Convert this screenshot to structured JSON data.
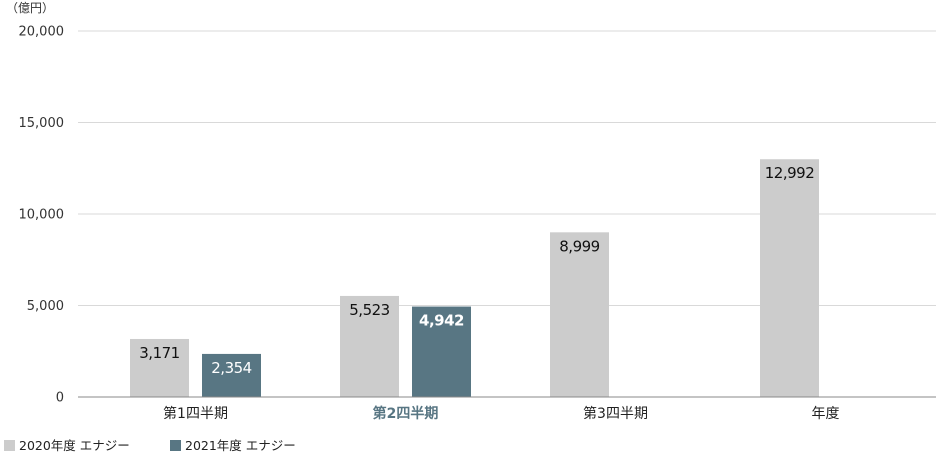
{
  "chart_data": {
    "type": "bar",
    "unit_label": "（億円）",
    "categories": [
      "第1四半期",
      "第2四半期",
      "第3四半期",
      "年度"
    ],
    "highlight_category_index": 1,
    "series": [
      {
        "name": "2020年度 エナジー",
        "color": "#cccccc",
        "values": [
          3171,
          5523,
          8999,
          12992
        ]
      },
      {
        "name": "2021年度 エナジー",
        "color": "#587683",
        "values": [
          2354,
          4942,
          null,
          null
        ]
      }
    ],
    "value_labels": [
      [
        "3,171",
        "5,523",
        "8,999",
        "12,992"
      ],
      [
        "2,354",
        "4,942",
        null,
        null
      ]
    ],
    "emphasized_value": {
      "series": 1,
      "index": 1
    },
    "ylim": [
      0,
      20000
    ],
    "yticks": [
      0,
      5000,
      10000,
      15000,
      20000
    ],
    "ytick_labels": [
      "0",
      "5,000",
      "10,000",
      "15,000",
      "20,000"
    ],
    "grid": true,
    "legend_position": "bottom-left"
  }
}
